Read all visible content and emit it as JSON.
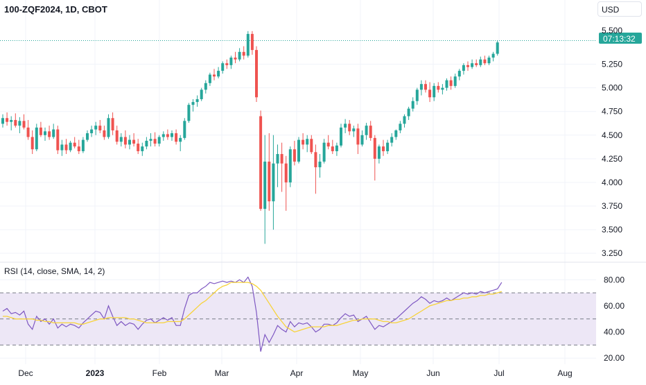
{
  "header": {
    "symbol_line": "100-ZQF2024, 1D, CBOT",
    "currency": "USD"
  },
  "price_badge": {
    "value": "5.500",
    "timer": "07:13:32"
  },
  "rsi_label": "RSI (14, close, SMA, 14, 2)",
  "colors": {
    "up": "#26a69a",
    "down": "#ef5350",
    "rsi": "#7e57c2",
    "rsi_ma": "#f7d33a",
    "band": "#ede7f6",
    "current_price": "#26a69a"
  },
  "chart_data": [
    {
      "type": "candlestick",
      "ylim": [
        3.2,
        5.65
      ],
      "y_ticks": [
        "3.250",
        "3.500",
        "3.750",
        "4.000",
        "4.250",
        "4.500",
        "4.750",
        "5.000",
        "5.250"
      ],
      "x_ticks": [
        "Dec",
        "2023",
        "Feb",
        "Mar",
        "Apr",
        "May",
        "Jun",
        "Jul",
        "Aug"
      ],
      "current_price": 5.5,
      "series": [
        {
          "values": [
            [
              4.62,
              4.72,
              4.58,
              4.68
            ],
            [
              4.68,
              4.74,
              4.6,
              4.64
            ],
            [
              4.64,
              4.7,
              4.55,
              4.66
            ],
            [
              4.66,
              4.73,
              4.58,
              4.6
            ],
            [
              4.6,
              4.69,
              4.52,
              4.65
            ],
            [
              4.65,
              4.72,
              4.56,
              4.58
            ],
            [
              4.58,
              4.66,
              4.45,
              4.48
            ],
            [
              4.48,
              4.55,
              4.3,
              4.35
            ],
            [
              4.35,
              4.62,
              4.33,
              4.58
            ],
            [
              4.58,
              4.64,
              4.48,
              4.5
            ],
            [
              4.5,
              4.58,
              4.44,
              4.54
            ],
            [
              4.54,
              4.6,
              4.45,
              4.48
            ],
            [
              4.48,
              4.62,
              4.46,
              4.56
            ],
            [
              4.56,
              4.6,
              4.3,
              4.34
            ],
            [
              4.34,
              4.45,
              4.28,
              4.4
            ],
            [
              4.4,
              4.46,
              4.3,
              4.34
            ],
            [
              4.34,
              4.44,
              4.32,
              4.42
            ],
            [
              4.42,
              4.48,
              4.36,
              4.38
            ],
            [
              4.38,
              4.45,
              4.3,
              4.33
            ],
            [
              4.33,
              4.48,
              4.31,
              4.45
            ],
            [
              4.45,
              4.55,
              4.43,
              4.52
            ],
            [
              4.52,
              4.6,
              4.48,
              4.56
            ],
            [
              4.56,
              4.64,
              4.5,
              4.6
            ],
            [
              4.6,
              4.66,
              4.52,
              4.55
            ],
            [
              4.55,
              4.6,
              4.45,
              4.48
            ],
            [
              4.48,
              4.72,
              4.46,
              4.68
            ],
            [
              4.68,
              4.74,
              4.5,
              4.55
            ],
            [
              4.55,
              4.6,
              4.4,
              4.43
            ],
            [
              4.43,
              4.52,
              4.38,
              4.48
            ],
            [
              4.48,
              4.55,
              4.36,
              4.4
            ],
            [
              4.4,
              4.5,
              4.35,
              4.45
            ],
            [
              4.45,
              4.52,
              4.38,
              4.41
            ],
            [
              4.41,
              4.46,
              4.3,
              4.33
            ],
            [
              4.33,
              4.42,
              4.28,
              4.38
            ],
            [
              4.38,
              4.48,
              4.35,
              4.44
            ],
            [
              4.44,
              4.52,
              4.38,
              4.46
            ],
            [
              4.46,
              4.53,
              4.38,
              4.41
            ],
            [
              4.41,
              4.5,
              4.38,
              4.48
            ],
            [
              4.48,
              4.54,
              4.44,
              4.51
            ],
            [
              4.51,
              4.56,
              4.45,
              4.48
            ],
            [
              4.48,
              4.55,
              4.44,
              4.52
            ],
            [
              4.52,
              4.56,
              4.4,
              4.43
            ],
            [
              4.43,
              4.5,
              4.33,
              4.47
            ],
            [
              4.47,
              4.68,
              4.45,
              4.65
            ],
            [
              4.65,
              4.84,
              4.63,
              4.82
            ],
            [
              4.82,
              4.88,
              4.75,
              4.85
            ],
            [
              4.85,
              4.92,
              4.8,
              4.88
            ],
            [
              4.88,
              5.0,
              4.86,
              4.98
            ],
            [
              4.98,
              5.08,
              4.94,
              5.05
            ],
            [
              5.05,
              5.16,
              5.02,
              5.14
            ],
            [
              5.14,
              5.2,
              5.08,
              5.12
            ],
            [
              5.12,
              5.22,
              5.1,
              5.18
            ],
            [
              5.18,
              5.28,
              5.15,
              5.26
            ],
            [
              5.26,
              5.3,
              5.2,
              5.24
            ],
            [
              5.24,
              5.34,
              5.2,
              5.32
            ],
            [
              5.32,
              5.38,
              5.26,
              5.3
            ],
            [
              5.3,
              5.42,
              5.28,
              5.38
            ],
            [
              5.38,
              5.44,
              5.3,
              5.34
            ],
            [
              5.34,
              5.6,
              5.32,
              5.57
            ],
            [
              5.57,
              5.6,
              5.35,
              5.4
            ],
            [
              5.4,
              5.44,
              4.85,
              4.9
            ],
            [
              4.7,
              4.76,
              3.7,
              3.72
            ],
            [
              3.72,
              4.5,
              3.35,
              4.22
            ],
            [
              4.22,
              4.52,
              3.7,
              3.8
            ],
            [
              3.8,
              4.5,
              3.5,
              4.2
            ],
            [
              4.2,
              4.4,
              3.95,
              4.3
            ],
            [
              4.3,
              4.42,
              3.9,
              4.2
            ],
            [
              4.2,
              4.28,
              3.7,
              4.0
            ],
            [
              4.0,
              4.38,
              3.95,
              4.35
            ],
            [
              4.35,
              4.44,
              4.18,
              4.22
            ],
            [
              4.22,
              4.48,
              4.2,
              4.45
            ],
            [
              4.45,
              4.52,
              4.35,
              4.4
            ],
            [
              4.4,
              4.5,
              4.32,
              4.46
            ],
            [
              4.46,
              4.5,
              4.3,
              4.32
            ],
            [
              4.32,
              4.4,
              3.88,
              4.16
            ],
            [
              4.16,
              4.3,
              4.05,
              4.22
            ],
            [
              4.22,
              4.46,
              4.2,
              4.42
            ],
            [
              4.42,
              4.5,
              4.35,
              4.38
            ],
            [
              4.38,
              4.45,
              4.3,
              4.33
            ],
            [
              4.33,
              4.42,
              4.28,
              4.39
            ],
            [
              4.39,
              4.62,
              4.37,
              4.58
            ],
            [
              4.58,
              4.67,
              4.52,
              4.62
            ],
            [
              4.62,
              4.66,
              4.5,
              4.54
            ],
            [
              4.54,
              4.6,
              4.48,
              4.57
            ],
            [
              4.57,
              4.62,
              4.3,
              4.4
            ],
            [
              4.4,
              4.55,
              4.38,
              4.5
            ],
            [
              4.5,
              4.63,
              4.45,
              4.6
            ],
            [
              4.6,
              4.65,
              4.44,
              4.47
            ],
            [
              4.47,
              4.5,
              4.02,
              4.25
            ],
            [
              4.25,
              4.4,
              4.2,
              4.38
            ],
            [
              4.38,
              4.45,
              4.28,
              4.33
            ],
            [
              4.33,
              4.45,
              4.3,
              4.42
            ],
            [
              4.42,
              4.52,
              4.38,
              4.48
            ],
            [
              4.48,
              4.56,
              4.45,
              4.55
            ],
            [
              4.55,
              4.65,
              4.52,
              4.62
            ],
            [
              4.62,
              4.72,
              4.58,
              4.7
            ],
            [
              4.7,
              4.8,
              4.66,
              4.78
            ],
            [
              4.78,
              4.9,
              4.75,
              4.86
            ],
            [
              4.86,
              5.0,
              4.82,
              4.98
            ],
            [
              4.98,
              5.08,
              4.92,
              5.04
            ],
            [
              5.04,
              5.08,
              4.95,
              4.98
            ],
            [
              4.98,
              5.06,
              4.85,
              4.9
            ],
            [
              4.9,
              5.05,
              4.86,
              5.02
            ],
            [
              5.02,
              5.06,
              4.95,
              4.98
            ],
            [
              4.98,
              5.04,
              4.93,
              5.0
            ],
            [
              5.0,
              5.1,
              4.97,
              5.08
            ],
            [
              5.08,
              5.12,
              4.98,
              5.02
            ],
            [
              5.02,
              5.15,
              5.0,
              5.12
            ],
            [
              5.12,
              5.2,
              5.08,
              5.18
            ],
            [
              5.18,
              5.26,
              5.14,
              5.24
            ],
            [
              5.24,
              5.28,
              5.18,
              5.22
            ],
            [
              5.22,
              5.3,
              5.2,
              5.26
            ],
            [
              5.26,
              5.3,
              5.22,
              5.24
            ],
            [
              5.24,
              5.33,
              5.22,
              5.3
            ],
            [
              5.3,
              5.34,
              5.24,
              5.26
            ],
            [
              5.26,
              5.34,
              5.24,
              5.32
            ],
            [
              5.32,
              5.38,
              5.28,
              5.36
            ],
            [
              5.36,
              5.5,
              5.34,
              5.48
            ]
          ]
        }
      ]
    },
    {
      "type": "line",
      "ylim": [
        18,
        86
      ],
      "y_ticks": [
        "20.00",
        "40.00",
        "60.00",
        "80.00"
      ],
      "reference_lines": [
        70,
        50,
        30
      ],
      "series": [
        {
          "values": [
            56,
            58,
            54,
            55,
            53,
            56,
            46,
            42,
            52,
            48,
            50,
            46,
            50,
            43,
            46,
            44,
            46,
            45,
            43,
            47,
            50,
            53,
            56,
            55,
            50,
            60,
            52,
            45,
            48,
            45,
            47,
            46,
            42,
            46,
            49,
            50,
            47,
            49,
            51,
            49,
            51,
            45,
            45,
            58,
            68,
            70,
            70,
            73,
            75,
            78,
            77,
            78,
            79,
            78,
            79,
            78,
            80,
            78,
            82,
            75,
            55,
            25,
            38,
            32,
            38,
            45,
            42,
            40,
            48,
            44,
            47,
            46,
            47,
            44,
            40,
            42,
            46,
            46,
            45,
            47,
            51,
            54,
            52,
            53,
            48,
            50,
            52,
            47,
            42,
            45,
            44,
            46,
            48,
            50,
            53,
            56,
            59,
            62,
            64,
            67,
            65,
            62,
            64,
            63,
            64,
            66,
            64,
            66,
            68,
            70,
            69,
            70,
            69,
            71,
            70,
            71,
            72,
            73,
            78
          ]
        },
        {
          "values": [
            52,
            52,
            51,
            50,
            50,
            50,
            50,
            50,
            49,
            49,
            48,
            48,
            47,
            47,
            47,
            47,
            47,
            47,
            46,
            46,
            47,
            48,
            49,
            50,
            50,
            51,
            51,
            51,
            51,
            51,
            50,
            50,
            49,
            48,
            47,
            47,
            47,
            47,
            47,
            48,
            48,
            48,
            48,
            50,
            53,
            56,
            59,
            62,
            64,
            67,
            70,
            73,
            75,
            76,
            78,
            78,
            78,
            78,
            78,
            77,
            75,
            72,
            67,
            62,
            57,
            52,
            48,
            44,
            42,
            40,
            41,
            42,
            43,
            44,
            44,
            44,
            44,
            45,
            45,
            45,
            46,
            47,
            48,
            49,
            49,
            50,
            50,
            50,
            50,
            49,
            48,
            48,
            47,
            47,
            48,
            49,
            50,
            52,
            54,
            56,
            58,
            60,
            61,
            62,
            63,
            64,
            64,
            65,
            65,
            66,
            66,
            67,
            67,
            68,
            68,
            69,
            69,
            70,
            71
          ]
        }
      ]
    }
  ]
}
